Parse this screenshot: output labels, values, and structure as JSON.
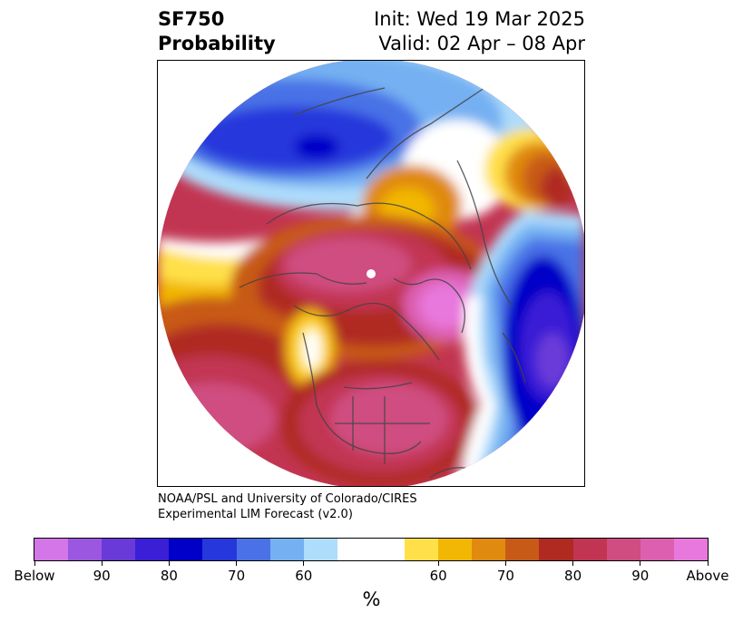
{
  "header": {
    "title_line1": "SF750",
    "title_line2": "Probability",
    "init": "Init: Wed 19 Mar 2025",
    "valid": "Valid: 02 Apr – 08 Apr"
  },
  "credit": {
    "line1": "NOAA/PSL and University of Colorado/CIRES",
    "line2": "Experimental LIM Forecast (v2.0)"
  },
  "colorbar": {
    "units": "%",
    "labels": [
      "Below",
      "90",
      "80",
      "70",
      "60",
      "60",
      "70",
      "80",
      "90",
      "Above"
    ],
    "below_colors": [
      "#d376e8",
      "#9b57e0",
      "#6a3ad8",
      "#3a1fd6",
      "#0000c8",
      "#2637dc",
      "#4a72e6",
      "#74b0f2",
      "#aedcfb"
    ],
    "neutral_color": "#ffffff",
    "above_colors": [
      "#ffe04a",
      "#f2b705",
      "#e08a10",
      "#c85a17",
      "#b02a22",
      "#c23552",
      "#cf4d80",
      "#dc5fb0",
      "#e878dc"
    ]
  }
}
